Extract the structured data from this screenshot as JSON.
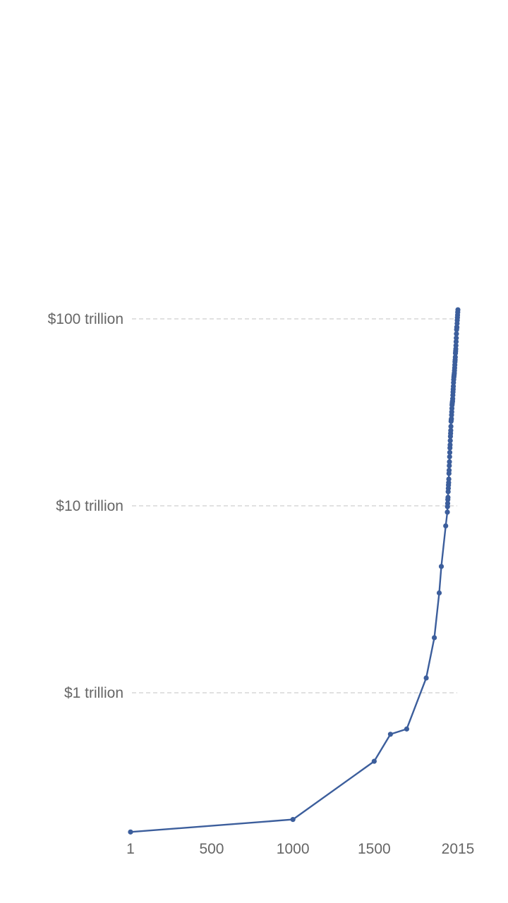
{
  "chart_data": {
    "type": "line",
    "title": "",
    "xlabel": "",
    "ylabel": "",
    "y_scale": "log",
    "x_ticks": [
      {
        "value": 1,
        "label": "1"
      },
      {
        "value": 500,
        "label": "500"
      },
      {
        "value": 1000,
        "label": "1000"
      },
      {
        "value": 1500,
        "label": "1500"
      },
      {
        "value": 2015,
        "label": "2015"
      }
    ],
    "y_ticks": [
      {
        "value": 1,
        "label": "$1 trillion"
      },
      {
        "value": 10,
        "label": "$10 trillion"
      },
      {
        "value": 100,
        "label": "$100 trillion"
      }
    ],
    "xlim": [
      1,
      2015
    ],
    "ylim": [
      0.18,
      115
    ],
    "grid": "horizontal dashed",
    "legend": "none",
    "colors": {
      "line": "#3c5e9c",
      "grid": "#cfcfcf",
      "text": "#666666"
    },
    "series": [
      {
        "x": [
          1,
          1000,
          1500,
          1600,
          1700,
          1820,
          1870,
          1900,
          1913,
          1940,
          1950,
          1951,
          1952,
          1953,
          1954,
          1955,
          1956,
          1957,
          1958,
          1959,
          1960,
          1961,
          1962,
          1963,
          1964,
          1965,
          1966,
          1967,
          1968,
          1969,
          1970,
          1971,
          1972,
          1973,
          1974,
          1975,
          1976,
          1977,
          1978,
          1979,
          1980,
          1981,
          1982,
          1983,
          1984,
          1985,
          1986,
          1987,
          1988,
          1989,
          1990,
          1991,
          1992,
          1993,
          1994,
          1995,
          1996,
          1997,
          1998,
          1999,
          2000,
          2001,
          2002,
          2003,
          2004,
          2005,
          2006,
          2007,
          2008,
          2009,
          2010,
          2011,
          2012,
          2013,
          2014,
          2015
        ],
        "y": [
          0.18,
          0.21,
          0.43,
          0.6,
          0.64,
          1.2,
          1.97,
          3.42,
          4.74,
          7.81,
          9.25,
          9.9,
          10.3,
          10.8,
          11.1,
          11.9,
          12.4,
          12.9,
          13.3,
          13.9,
          14.9,
          15.5,
          16.4,
          17.2,
          18.3,
          19.3,
          20.4,
          21.2,
          22.3,
          23.5,
          24.4,
          25.3,
          26.6,
          28.3,
          28.9,
          29.2,
          30.6,
          31.8,
          33.2,
          34.6,
          35.3,
          35.9,
          36.3,
          37.4,
          39.1,
          40.6,
          42.0,
          43.6,
          45.6,
          47.3,
          48.7,
          49.5,
          50.4,
          51.4,
          53.0,
          54.7,
          56.7,
          58.9,
          60.4,
          62.5,
          65.5,
          67.2,
          69.1,
          72.0,
          75.5,
          79.0,
          83.2,
          87.6,
          90.4,
          90.1,
          94.5,
          98.3,
          101.6,
          104.9,
          108.4,
          111.9
        ]
      }
    ]
  }
}
